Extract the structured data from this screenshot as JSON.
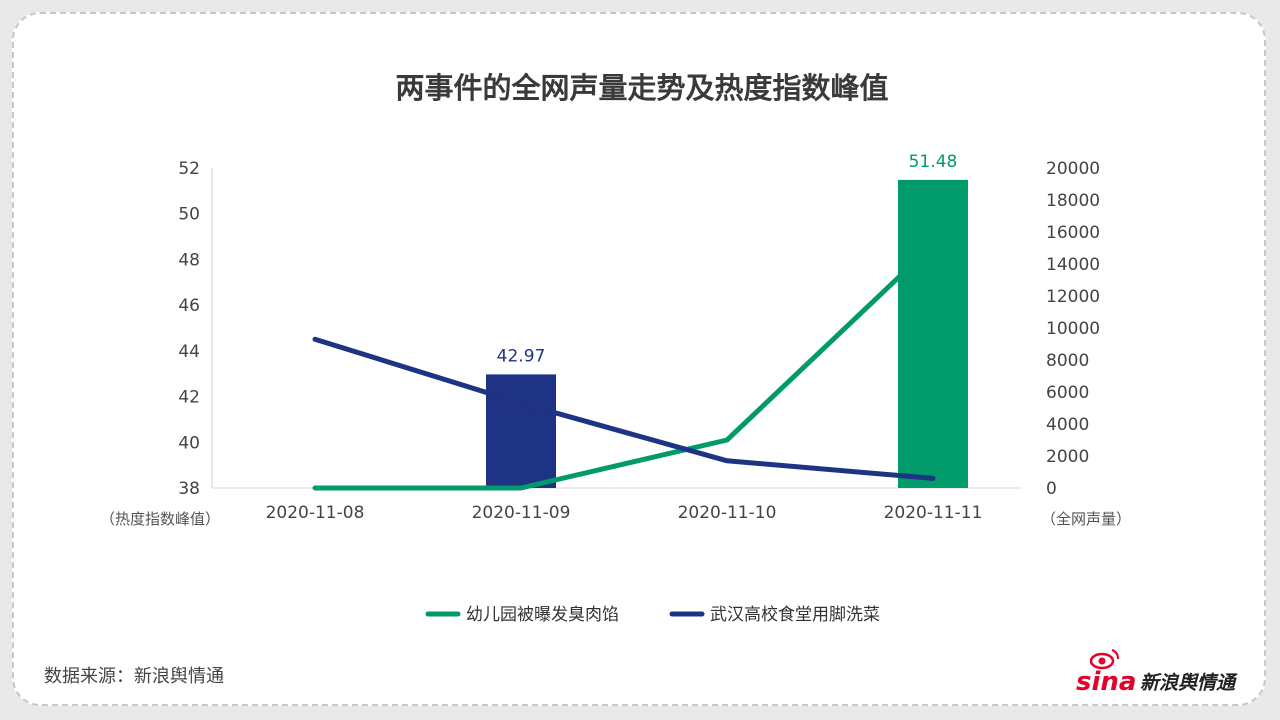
{
  "chart_data": {
    "type": "bar+line",
    "title": "两事件的全网声量走势及热度指数峰值",
    "categories": [
      "2020-11-08",
      "2020-11-09",
      "2020-11-10",
      "2020-11-11"
    ],
    "left_axis": {
      "label": "（热度指数峰值）",
      "range": [
        38,
        52
      ],
      "ticks": [
        "38",
        "40",
        "42",
        "44",
        "46",
        "48",
        "50",
        "52"
      ]
    },
    "right_axis": {
      "label": "（全网声量）",
      "range": [
        0,
        20000
      ],
      "ticks": [
        "0",
        "2000",
        "4000",
        "6000",
        "8000",
        "10000",
        "12000",
        "14000",
        "16000",
        "18000",
        "20000"
      ]
    },
    "bars": [
      {
        "category": "2020-11-09",
        "value": 42.97,
        "label": "42.97",
        "color": "#1f3385"
      },
      {
        "category": "2020-11-11",
        "value": 51.48,
        "label": "51.48",
        "color": "#009a6b"
      }
    ],
    "series": [
      {
        "name": "幼儿园被曝发臭肉馅",
        "color": "#009a6b",
        "values": [
          0,
          0,
          3000,
          15200
        ]
      },
      {
        "name": "武汉高校食堂用脚洗菜",
        "color": "#1f3385",
        "values": [
          9300,
          5300,
          1700,
          600
        ]
      }
    ],
    "grid": false,
    "legend_position": "bottom"
  },
  "footer": {
    "source": "数据来源：新浪舆情通",
    "brand_sina": "sina",
    "brand_text": "新浪舆情通"
  }
}
